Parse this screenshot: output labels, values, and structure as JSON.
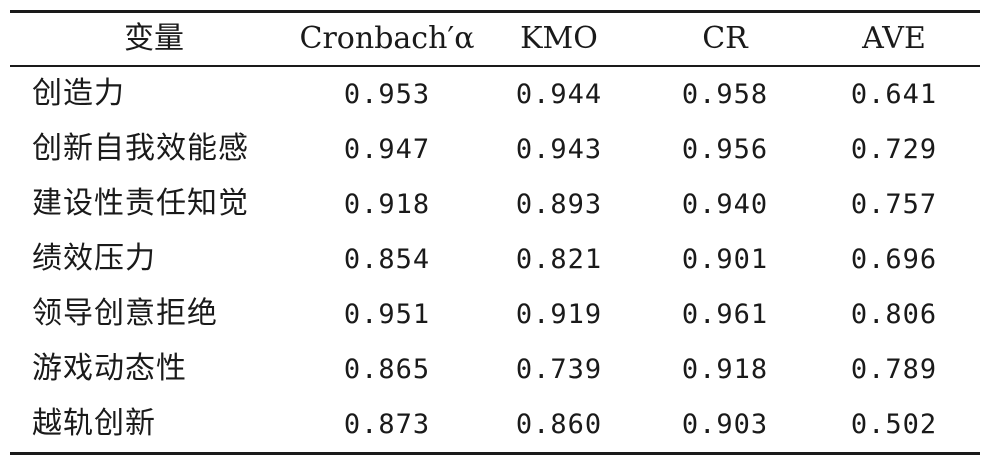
{
  "table": {
    "headers": [
      "变量",
      "Cronbach′α",
      "KMO",
      "CR",
      "AVE"
    ],
    "rows": [
      {
        "name": "创造力",
        "values": [
          "0.953",
          "0.944",
          "0.958",
          "0.641"
        ]
      },
      {
        "name": "创新自我效能感",
        "values": [
          "0.947",
          "0.943",
          "0.956",
          "0.729"
        ]
      },
      {
        "name": "建设性责任知觉",
        "values": [
          "0.918",
          "0.893",
          "0.940",
          "0.757"
        ]
      },
      {
        "name": "绩效压力",
        "values": [
          "0.854",
          "0.821",
          "0.901",
          "0.696"
        ]
      },
      {
        "name": "领导创意拒绝",
        "values": [
          "0.951",
          "0.919",
          "0.961",
          "0.806"
        ]
      },
      {
        "name": "游戏动态性",
        "values": [
          "0.865",
          "0.739",
          "0.918",
          "0.789"
        ]
      },
      {
        "name": "越轨创新",
        "values": [
          "0.873",
          "0.860",
          "0.903",
          "0.502"
        ]
      }
    ]
  }
}
